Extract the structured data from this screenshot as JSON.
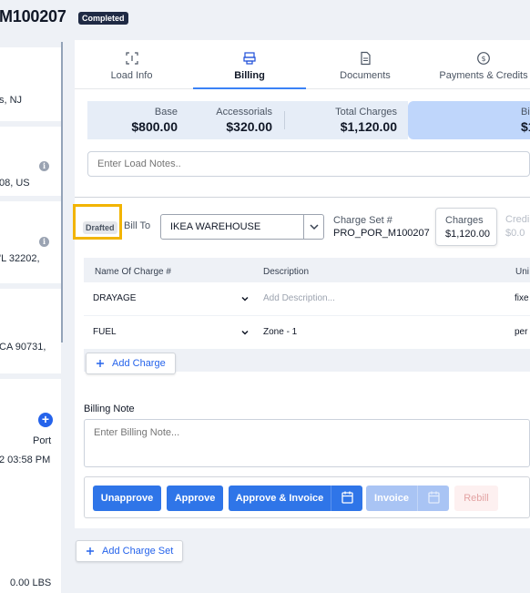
{
  "header": {
    "load_id": "M100207",
    "status": "Completed"
  },
  "sidebar": {
    "card1_line": "s, NJ",
    "card2_line": "08, US",
    "card3_line": "'L 32202,",
    "card4_line": "CA 90731,",
    "card5_label": "Port",
    "card5_datetime": "2 03:58 PM",
    "weight": "0.00 LBS"
  },
  "tabs": [
    {
      "label": "Load Info",
      "icon": "scan-icon"
    },
    {
      "label": "Billing",
      "icon": "billing-icon"
    },
    {
      "label": "Documents",
      "icon": "document-icon"
    },
    {
      "label": "Payments & Credits",
      "icon": "payment-icon"
    }
  ],
  "summary": {
    "base_label": "Base",
    "base_value": "$800.00",
    "accessorials_label": "Accessorials",
    "accessorials_value": "$320.00",
    "total_label": "Total Charges",
    "total_value": "$1,120.00",
    "highlight_label": "Bi",
    "highlight_value": "$1"
  },
  "load_notes": {
    "placeholder": "Enter Load Notes.."
  },
  "charge_set": {
    "status": "Drafted",
    "bill_to_label": "Bill To",
    "bill_to_value": "IKEA WAREHOUSE",
    "charge_set_label": "Charge Set #",
    "charge_set_value": "PRO_POR_M100207",
    "charges_label": "Charges",
    "charges_value": "$1,120.00",
    "credits_label": "Credi",
    "credits_value": "$0.0"
  },
  "charges_table": {
    "headers": {
      "name": "Name Of Charge #",
      "description": "Description",
      "unit": "Uni"
    },
    "rows": [
      {
        "name": "DRAYAGE",
        "description": "",
        "description_placeholder": "Add Description...",
        "unit": "fixe"
      },
      {
        "name": "FUEL",
        "description": "Zone - 1",
        "description_placeholder": "",
        "unit": "per"
      }
    ],
    "add_charge_label": "Add Charge"
  },
  "billing_note": {
    "label": "Billing Note",
    "placeholder": "Enter Billing Note..."
  },
  "actions": {
    "unapprove": "Unapprove",
    "approve": "Approve",
    "approve_invoice": "Approve & Invoice",
    "invoice": "Invoice",
    "rebill": "Rebill"
  },
  "add_charge_set_label": "Add Charge Set",
  "colors": {
    "accent": "#2f75e8",
    "highlight_outline": "#f2b400",
    "status_badge": "#1f2a44"
  }
}
